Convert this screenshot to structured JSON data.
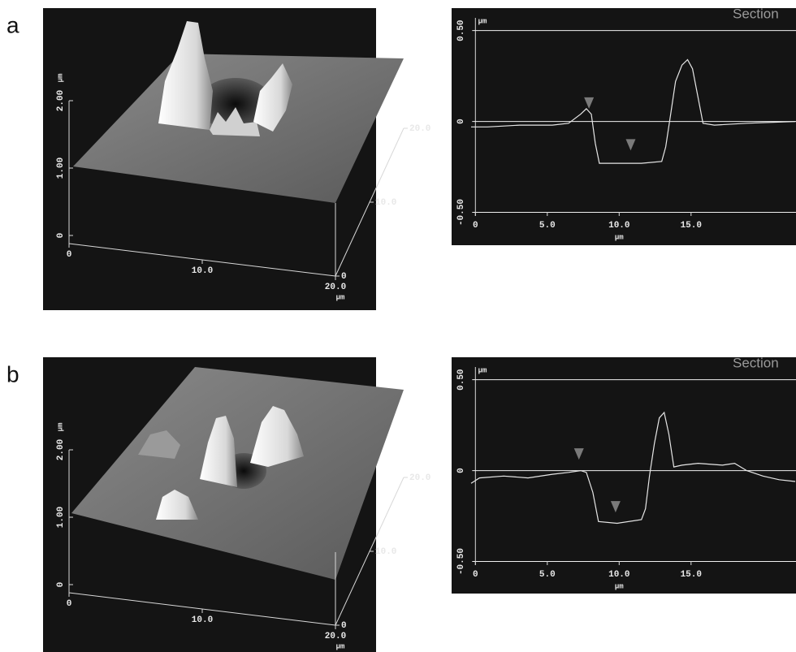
{
  "chart_data": [
    {
      "type": "surface",
      "panel_label": "a",
      "xlim": [
        0,
        20
      ],
      "xticks": [
        0,
        {
          "value": 10,
          "label": "10.0"
        },
        {
          "value": 20,
          "label": "20.0"
        }
      ],
      "xlabel": "µm",
      "ylim": [
        0,
        20
      ],
      "yticks": [
        0,
        {
          "value": 10,
          "label": "10.0"
        },
        {
          "value": 20,
          "label": "20.0"
        }
      ],
      "zlim": [
        0,
        2
      ],
      "zticks": [
        0,
        {
          "value": 1,
          "label": "1.00"
        },
        {
          "value": 2,
          "label": "2.00"
        }
      ],
      "zlabel": "µm"
    },
    {
      "type": "line",
      "title": "Section",
      "xlabel": "µm",
      "ylabel": "µm",
      "xlim": [
        -0.3,
        22.3
      ],
      "xticks": [
        0,
        {
          "value": 5,
          "label": "5.0"
        },
        {
          "value": 10,
          "label": "10.0"
        },
        {
          "value": 15,
          "label": "15.0"
        }
      ],
      "ylim": [
        -0.52,
        0.57
      ],
      "yticks": [
        {
          "value": -0.5,
          "label": "-0.50"
        },
        0,
        {
          "value": 0.5,
          "label": "0.50"
        }
      ],
      "color": "#e6e6e6",
      "x": [
        -0.3,
        0.85,
        3.1,
        5.35,
        6.48,
        7.32,
        7.72,
        8.06,
        8.34,
        8.62,
        9.86,
        11.55,
        12.96,
        13.24,
        13.58,
        13.92,
        14.37,
        14.76,
        15.1,
        15.49,
        15.83,
        16.62,
        18.87,
        22.25
      ],
      "values": [
        -0.03,
        -0.03,
        -0.02,
        -0.02,
        -0.01,
        0.04,
        0.07,
        0.04,
        -0.12,
        -0.23,
        -0.23,
        -0.23,
        -0.22,
        -0.14,
        0.04,
        0.22,
        0.31,
        0.34,
        0.29,
        0.13,
        -0.01,
        -0.02,
        -0.01,
        0.0
      ],
      "markers": {
        "color": "#7a7a7a",
        "x": [
          7.9,
          10.8
        ],
        "values": [
          0.07,
          -0.16
        ]
      }
    },
    {
      "type": "surface",
      "panel_label": "b",
      "xlim": [
        0,
        20
      ],
      "xticks": [
        0,
        {
          "value": 10,
          "label": "10.0"
        },
        {
          "value": 20,
          "label": "20.0"
        }
      ],
      "xlabel": "µm",
      "ylim": [
        0,
        20
      ],
      "yticks": [
        0,
        {
          "value": 10,
          "label": "10.0"
        },
        {
          "value": 20,
          "label": "20.0"
        }
      ],
      "zlim": [
        0,
        2
      ],
      "zticks": [
        0,
        {
          "value": 1,
          "label": "1.00"
        },
        {
          "value": 2,
          "label": "2.00"
        }
      ],
      "zlabel": "µm"
    },
    {
      "type": "line",
      "title": "Section",
      "xlabel": "µm",
      "ylabel": "µm",
      "xlim": [
        -0.3,
        22.3
      ],
      "xticks": [
        0,
        {
          "value": 5,
          "label": "5.0"
        },
        {
          "value": 10,
          "label": "10.0"
        },
        {
          "value": 15,
          "label": "15.0"
        }
      ],
      "ylim": [
        -0.52,
        0.57
      ],
      "yticks": [
        {
          "value": -0.5,
          "label": "-0.50"
        },
        0,
        {
          "value": 0.5,
          "label": "0.50"
        }
      ],
      "color": "#e6e6e6",
      "x": [
        -0.3,
        0.28,
        1.97,
        3.66,
        5.35,
        6.48,
        7.32,
        7.72,
        8.17,
        8.56,
        9.86,
        11.55,
        11.83,
        12.11,
        12.45,
        12.79,
        13.13,
        13.46,
        13.8,
        14.37,
        15.49,
        17.18,
        18.03,
        18.87,
        20.0,
        21.13,
        22.25
      ],
      "values": [
        -0.07,
        -0.04,
        -0.03,
        -0.04,
        -0.02,
        -0.01,
        0.0,
        -0.01,
        -0.12,
        -0.28,
        -0.29,
        -0.27,
        -0.21,
        -0.03,
        0.15,
        0.29,
        0.32,
        0.2,
        0.02,
        0.03,
        0.04,
        0.03,
        0.04,
        0.0,
        -0.03,
        -0.05,
        -0.06
      ],
      "markers": {
        "color": "#7a7a7a",
        "x": [
          7.2,
          9.75
        ],
        "values": [
          0.06,
          -0.23
        ]
      }
    }
  ]
}
